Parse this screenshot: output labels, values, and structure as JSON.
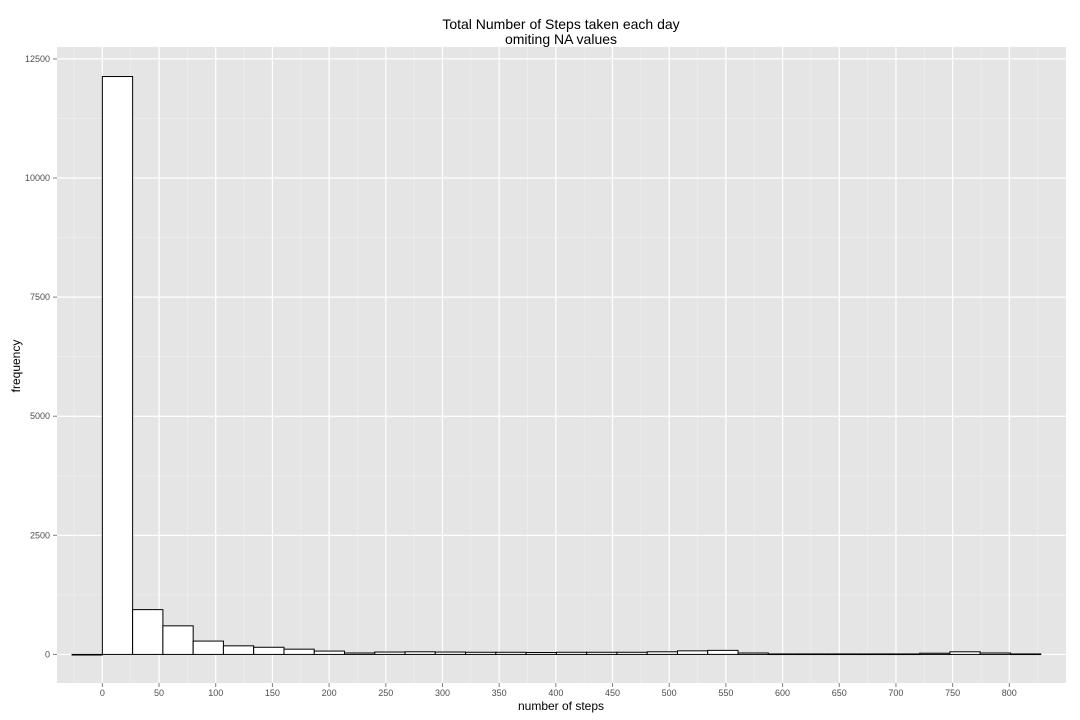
{
  "chart_data": {
    "type": "bar",
    "title_line1": "Total Number of Steps taken each day",
    "title_line2": "omiting NA values",
    "xlabel": "number of steps",
    "ylabel": "frequency",
    "bin_width": 26.7,
    "bin_starts": [
      -26.7,
      0,
      26.7,
      53.4,
      80.1,
      106.8,
      133.5,
      160.2,
      186.9,
      213.6,
      240.3,
      267,
      293.7,
      320.4,
      347.1,
      373.8,
      400.5,
      427.2,
      453.9,
      480.6,
      507.3,
      534,
      560.7,
      587.4,
      614.1,
      640.8,
      667.5,
      694.2,
      720.9,
      747.6,
      774.3,
      801
    ],
    "values": [
      0,
      12130,
      940,
      600,
      280,
      180,
      150,
      110,
      70,
      30,
      50,
      55,
      50,
      45,
      45,
      40,
      45,
      45,
      45,
      55,
      75,
      85,
      30,
      10,
      10,
      10,
      10,
      10,
      25,
      55,
      30,
      10
    ],
    "xlim": [
      -40,
      850
    ],
    "ylim": [
      -600,
      12750
    ],
    "x_ticks": [
      0,
      50,
      100,
      150,
      200,
      250,
      300,
      350,
      400,
      450,
      500,
      550,
      600,
      650,
      700,
      750,
      800
    ],
    "y_ticks": [
      0,
      2500,
      5000,
      7500,
      10000,
      12500
    ],
    "grid": true,
    "colors": {
      "panel_bg": "#e5e5e5",
      "grid_major": "#ffffff",
      "grid_minor": "#f0f0f0",
      "bar_fill": "#ffffff",
      "bar_stroke": "#000000"
    }
  }
}
